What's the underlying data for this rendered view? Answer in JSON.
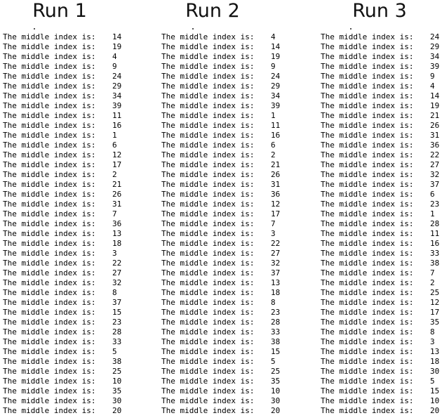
{
  "runs": [
    {
      "title": "Run 1",
      "label": "The middle index is:",
      "values": [
        "14",
        "19",
        "4",
        "9",
        "24",
        "29",
        "34",
        "39",
        "11",
        "16",
        "1",
        "6",
        "12",
        "17",
        "2",
        "21",
        "26",
        "31",
        "7",
        "36",
        "13",
        "18",
        "3",
        "22",
        "27",
        "32",
        "8",
        "37",
        "15",
        "23",
        "28",
        "33",
        "5",
        "38",
        "25",
        "10",
        "35",
        "30",
        "20"
      ]
    },
    {
      "title": "Run 2",
      "label": "The middle index is:",
      "values": [
        "4",
        "14",
        "19",
        "9",
        "24",
        "29",
        "34",
        "39",
        "1",
        "11",
        "16",
        "6",
        "2",
        "21",
        "26",
        "31",
        "36",
        "12",
        "17",
        "7",
        "3",
        "22",
        "27",
        "32",
        "37",
        "13",
        "18",
        "8",
        "23",
        "28",
        "33",
        "38",
        "15",
        "5",
        "25",
        "35",
        "10",
        "30",
        "20"
      ]
    },
    {
      "title": "Run 3",
      "label": "The middle index is:",
      "values": [
        "24",
        "29",
        "34",
        "39",
        "9",
        "4",
        "14",
        "19",
        "21",
        "26",
        "31",
        "36",
        "22",
        "27",
        "32",
        "37",
        "6",
        "23",
        "1",
        "28",
        "11",
        "16",
        "33",
        "38",
        "7",
        "2",
        "25",
        "12",
        "17",
        "35",
        "8",
        "3",
        "13",
        "18",
        "30",
        "5",
        "15",
        "10",
        "20"
      ]
    }
  ]
}
